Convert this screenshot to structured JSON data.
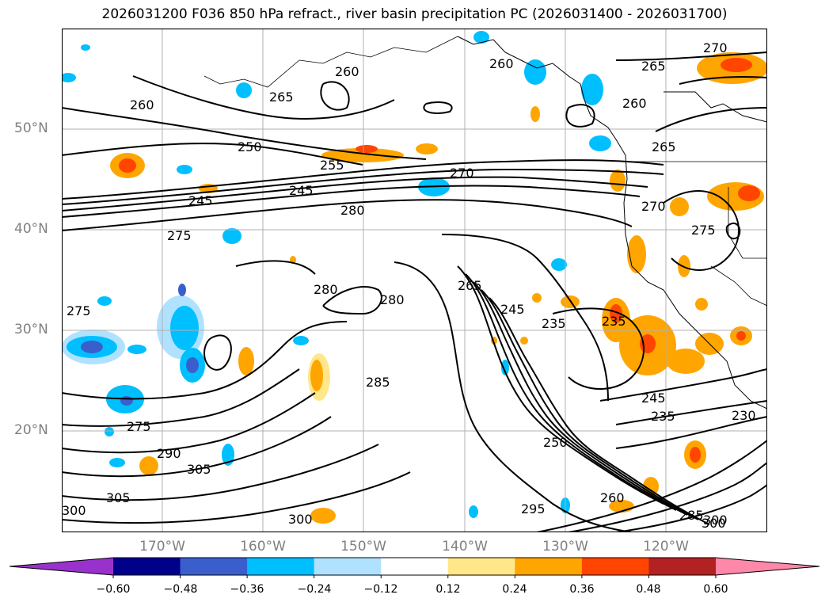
{
  "title": "2026031200 F036 850 hPa refract., river basin precipitation PC (2026031400 - 2026031700)",
  "axes": {
    "lat_labels": [
      "50°N",
      "40°N",
      "30°N",
      "20°N"
    ],
    "lon_labels": [
      "170°W",
      "160°W",
      "150°W",
      "140°W",
      "130°W",
      "120°W"
    ],
    "lon_range": [
      -180,
      -110
    ],
    "lat_range": [
      10,
      60
    ],
    "grid": true
  },
  "contour_labels": [
    "270",
    "265",
    "260",
    "260",
    "265",
    "260",
    "265",
    "260",
    "250",
    "255",
    "245",
    "245",
    "270",
    "280",
    "275",
    "280",
    "280",
    "275",
    "285",
    "265",
    "245",
    "235",
    "235",
    "270",
    "275",
    "245",
    "235",
    "230",
    "275",
    "290",
    "305",
    "305",
    "300",
    "300",
    "250",
    "260",
    "295",
    "285",
    "300",
    "300"
  ],
  "colorbar": {
    "ticks": [
      "−0.60",
      "−0.48",
      "−0.36",
      "−0.24",
      "−0.12",
      "0.12",
      "0.24",
      "0.36",
      "0.48",
      "0.60"
    ],
    "colors": [
      "#9932cc",
      "#00008b",
      "#3a5fcd",
      "#00bfff",
      "#b0e2ff",
      "#ffffff",
      "#ffe78a",
      "#ffa500",
      "#ff4500",
      "#b22222",
      "#ff88aa"
    ]
  },
  "colors": {
    "contour": "#000000",
    "coast": "#000000",
    "grid": "#b0b0b0",
    "tick_label": "#808080"
  }
}
